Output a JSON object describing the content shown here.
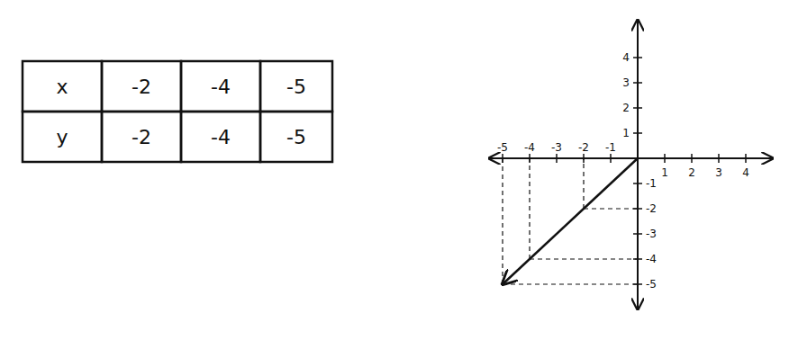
{
  "table": {
    "rows": [
      [
        "x",
        -2,
        -4,
        -5
      ],
      [
        "y",
        -2,
        -4,
        -5
      ]
    ]
  },
  "chart_data": {
    "type": "line",
    "x": [
      -5,
      -4,
      -2,
      0
    ],
    "series": [
      {
        "color": "#111111",
        "values": [
          -5,
          -4,
          -2,
          0
        ]
      }
    ],
    "xlim": [
      -5.5,
      5
    ],
    "xticks": [
      -5,
      -4,
      -3,
      -2,
      -1,
      1,
      2,
      3,
      4
    ],
    "ylim": [
      -6,
      5.5
    ],
    "yticks": [
      -5,
      -4,
      -3,
      -2,
      -1,
      1,
      2,
      3,
      4
    ],
    "grid": false
  }
}
